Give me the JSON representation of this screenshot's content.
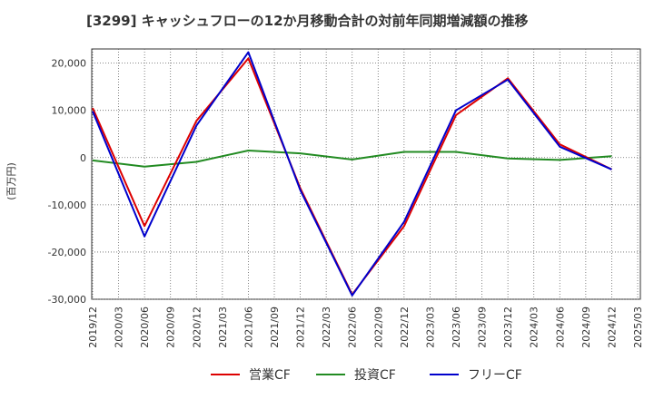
{
  "chart_data": {
    "type": "line",
    "title": "[3299]  キャッシュフローの12か月移動合計の対前年同期増減額の推移",
    "ylabel": "(百万円)",
    "xlabel": "",
    "ylim": [
      -30000,
      23000
    ],
    "yticks": [
      20000,
      10000,
      0,
      -10000,
      -20000,
      -30000
    ],
    "ytick_labels": [
      "20,000",
      "10,000",
      "0",
      "-10,000",
      "-20,000",
      "-30,000"
    ],
    "x": [
      "2019/12",
      "2020/03",
      "2020/06",
      "2020/09",
      "2020/12",
      "2021/03",
      "2021/06",
      "2021/09",
      "2021/12",
      "2022/03",
      "2022/06",
      "2022/09",
      "2022/12",
      "2023/03",
      "2023/06",
      "2023/09",
      "2023/12",
      "2024/03",
      "2024/06",
      "2024/09",
      "2024/12",
      "2025/03"
    ],
    "grid": true,
    "legend_position": "bottom",
    "series": [
      {
        "name": "営業CF",
        "color": "#dd0000",
        "values": [
          10500,
          null,
          -14500,
          null,
          7800,
          null,
          21000,
          null,
          -6500,
          null,
          -29000,
          null,
          -14500,
          null,
          9000,
          null,
          16800,
          null,
          2800,
          null,
          -2500,
          null
        ]
      },
      {
        "name": "投資CF",
        "color": "#228B22",
        "values": [
          -600,
          null,
          -1900,
          null,
          -900,
          null,
          1500,
          null,
          900,
          null,
          -400,
          null,
          1200,
          null,
          1200,
          null,
          -200,
          null,
          -500,
          null,
          300,
          null
        ]
      },
      {
        "name": "フリーCF",
        "color": "#0000cc",
        "values": [
          9800,
          null,
          -16700,
          null,
          6800,
          null,
          22300,
          null,
          -6900,
          null,
          -29200,
          null,
          -13600,
          null,
          10000,
          null,
          16500,
          null,
          2300,
          null,
          -2500,
          null
        ]
      }
    ]
  }
}
